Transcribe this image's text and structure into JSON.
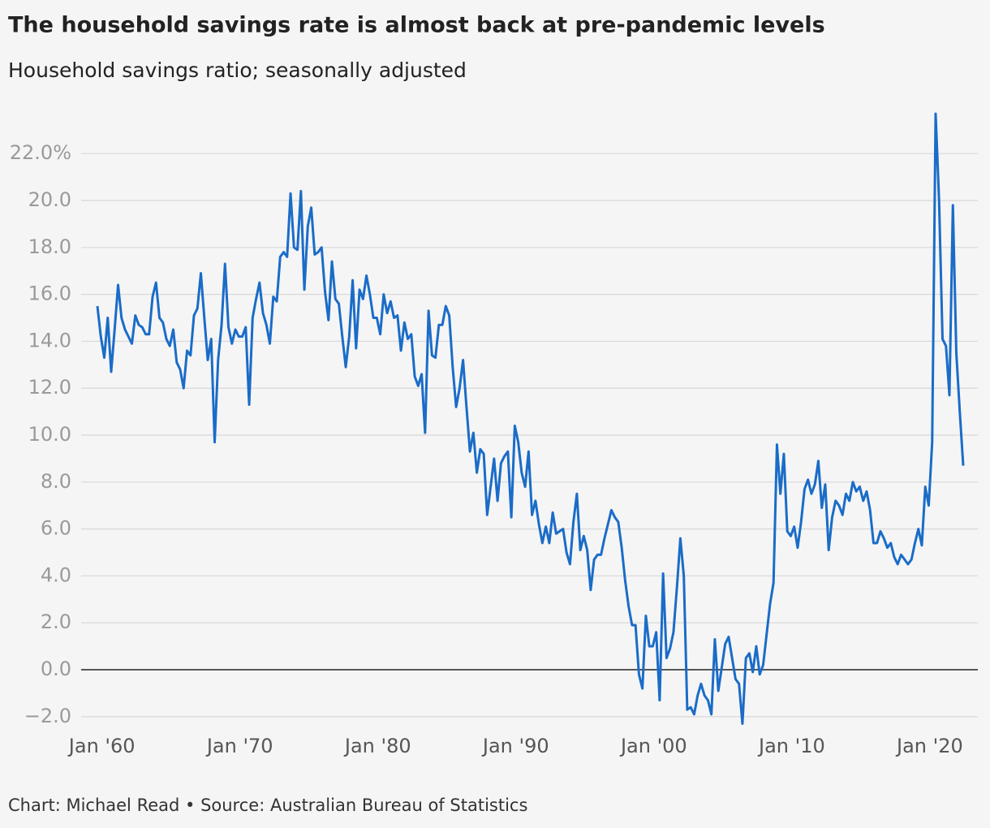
{
  "chart_data": {
    "type": "line",
    "title": "The household savings rate is almost back at pre-pandemic levels",
    "subtitle": "Household savings ratio; seasonally adjusted",
    "source": "Chart: Michael Read • Source: Australian Bureau of Statistics",
    "color": "#1a6cc8",
    "grid": true,
    "xlim": [
      "1959-09",
      "2022-06"
    ],
    "ylim": [
      -2.5,
      24
    ],
    "yticks": [
      {
        "value": -2,
        "label": "−2.0"
      },
      {
        "value": 0,
        "label": "0.0"
      },
      {
        "value": 2,
        "label": "2.0"
      },
      {
        "value": 4,
        "label": "4.0"
      },
      {
        "value": 6,
        "label": "6.0"
      },
      {
        "value": 8,
        "label": "8.0"
      },
      {
        "value": 10,
        "label": "10.0"
      },
      {
        "value": 12,
        "label": "12.0"
      },
      {
        "value": 14,
        "label": "14.0"
      },
      {
        "value": 16,
        "label": "16.0"
      },
      {
        "value": 18,
        "label": "18.0"
      },
      {
        "value": 20,
        "label": "20.0"
      },
      {
        "value": 22,
        "label": "22.0%"
      }
    ],
    "xticks": [
      {
        "value": "1960-01",
        "label": "Jan '60"
      },
      {
        "value": "1970-01",
        "label": "Jan '70"
      },
      {
        "value": "1980-01",
        "label": "Jan '80"
      },
      {
        "value": "1990-01",
        "label": "Jan '90"
      },
      {
        "value": "2000-01",
        "label": "Jan '00"
      },
      {
        "value": "2010-01",
        "label": "Jan '10"
      },
      {
        "value": "2020-01",
        "label": "Jan '20"
      }
    ],
    "x": [
      "1959-09",
      "1959-12",
      "1960-03",
      "1960-06",
      "1960-09",
      "1960-12",
      "1961-03",
      "1961-06",
      "1961-09",
      "1961-12",
      "1962-03",
      "1962-06",
      "1962-09",
      "1962-12",
      "1963-03",
      "1963-06",
      "1963-09",
      "1963-12",
      "1964-03",
      "1964-06",
      "1964-09",
      "1964-12",
      "1965-03",
      "1965-06",
      "1965-09",
      "1965-12",
      "1966-03",
      "1966-06",
      "1966-09",
      "1966-12",
      "1967-03",
      "1967-06",
      "1967-09",
      "1967-12",
      "1968-03",
      "1968-06",
      "1968-09",
      "1968-12",
      "1969-03",
      "1969-06",
      "1969-09",
      "1969-12",
      "1970-03",
      "1970-06",
      "1970-09",
      "1970-12",
      "1971-03",
      "1971-06",
      "1971-09",
      "1971-12",
      "1972-03",
      "1972-06",
      "1972-09",
      "1972-12",
      "1973-03",
      "1973-06",
      "1973-09",
      "1973-12",
      "1974-03",
      "1974-06",
      "1974-09",
      "1974-12",
      "1975-03",
      "1975-06",
      "1975-09",
      "1975-12",
      "1976-03",
      "1976-06",
      "1976-09",
      "1976-12",
      "1977-03",
      "1977-06",
      "1977-09",
      "1977-12",
      "1978-03",
      "1978-06",
      "1978-09",
      "1978-12",
      "1979-03",
      "1979-06",
      "1979-09",
      "1979-12",
      "1980-03",
      "1980-06",
      "1980-09",
      "1980-12",
      "1981-03",
      "1981-06",
      "1981-09",
      "1981-12",
      "1982-03",
      "1982-06",
      "1982-09",
      "1982-12",
      "1983-03",
      "1983-06",
      "1983-09",
      "1983-12",
      "1984-03",
      "1984-06",
      "1984-09",
      "1984-12",
      "1985-03",
      "1985-06",
      "1985-09",
      "1985-12",
      "1986-03",
      "1986-06",
      "1986-09",
      "1986-12",
      "1987-03",
      "1987-06",
      "1987-09",
      "1987-12",
      "1988-03",
      "1988-06",
      "1988-09",
      "1988-12",
      "1989-03",
      "1989-06",
      "1989-09",
      "1989-12",
      "1990-03",
      "1990-06",
      "1990-09",
      "1990-12",
      "1991-03",
      "1991-06",
      "1991-09",
      "1991-12",
      "1992-03",
      "1992-06",
      "1992-09",
      "1992-12",
      "1993-03",
      "1993-06",
      "1993-09",
      "1993-12",
      "1994-03",
      "1994-06",
      "1994-09",
      "1994-12",
      "1995-03",
      "1995-06",
      "1995-09",
      "1995-12",
      "1996-03",
      "1996-06",
      "1996-09",
      "1996-12",
      "1997-03",
      "1997-06",
      "1997-09",
      "1997-12",
      "1998-03",
      "1998-06",
      "1998-09",
      "1998-12",
      "1999-03",
      "1999-06",
      "1999-09",
      "1999-12",
      "2000-03",
      "2000-06",
      "2000-09",
      "2000-12",
      "2001-03",
      "2001-06",
      "2001-09",
      "2001-12",
      "2002-03",
      "2002-06",
      "2002-09",
      "2002-12",
      "2003-03",
      "2003-06",
      "2003-09",
      "2003-12",
      "2004-03",
      "2004-06",
      "2004-09",
      "2004-12",
      "2005-03",
      "2005-06",
      "2005-09",
      "2005-12",
      "2006-03",
      "2006-06",
      "2006-09",
      "2006-12",
      "2007-03",
      "2007-06",
      "2007-09",
      "2007-12",
      "2008-03",
      "2008-06",
      "2008-09",
      "2008-12",
      "2009-03",
      "2009-06",
      "2009-09",
      "2009-12",
      "2010-03",
      "2010-06",
      "2010-09",
      "2010-12",
      "2011-03",
      "2011-06",
      "2011-09",
      "2011-12",
      "2012-03",
      "2012-06",
      "2012-09",
      "2012-12",
      "2013-03",
      "2013-06",
      "2013-09",
      "2013-12",
      "2014-03",
      "2014-06",
      "2014-09",
      "2014-12",
      "2015-03",
      "2015-06",
      "2015-09",
      "2015-12",
      "2016-03",
      "2016-06",
      "2016-09",
      "2016-12",
      "2017-03",
      "2017-06",
      "2017-09",
      "2017-12",
      "2018-03",
      "2018-06",
      "2018-09",
      "2018-12",
      "2019-03",
      "2019-06",
      "2019-09",
      "2019-12",
      "2020-03",
      "2020-06",
      "2020-09",
      "2020-12",
      "2021-03",
      "2021-06",
      "2021-09",
      "2021-12",
      "2022-03",
      "2022-06"
    ],
    "values": [
      15.5,
      14.2,
      13.3,
      15.0,
      12.7,
      14.5,
      16.4,
      15.0,
      14.5,
      14.2,
      13.9,
      15.1,
      14.7,
      14.6,
      14.3,
      14.3,
      15.9,
      16.5,
      15.0,
      14.8,
      14.1,
      13.8,
      14.5,
      13.1,
      12.8,
      12.0,
      13.6,
      13.4,
      15.1,
      15.4,
      16.9,
      15.0,
      13.2,
      14.1,
      9.7,
      13.2,
      14.7,
      17.3,
      14.6,
      13.9,
      14.5,
      14.2,
      14.2,
      14.6,
      11.3,
      15.0,
      15.8,
      16.5,
      15.2,
      14.7,
      13.9,
      15.9,
      15.7,
      17.6,
      17.8,
      17.6,
      20.3,
      18.0,
      17.9,
      20.4,
      16.2,
      18.9,
      19.7,
      17.7,
      17.8,
      18.0,
      16.1,
      14.9,
      17.4,
      15.8,
      15.6,
      14.2,
      12.9,
      14.2,
      16.6,
      13.7,
      16.2,
      15.8,
      16.8,
      16.0,
      15.0,
      15.0,
      14.3,
      16.0,
      15.2,
      15.7,
      15.0,
      15.1,
      13.6,
      14.8,
      14.1,
      14.3,
      12.5,
      12.1,
      12.6,
      10.1,
      15.3,
      13.4,
      13.3,
      14.7,
      14.7,
      15.5,
      15.1,
      12.9,
      11.2,
      12.0,
      13.2,
      11.2,
      9.3,
      10.1,
      8.4,
      9.4,
      9.2,
      6.6,
      7.8,
      9.0,
      7.2,
      8.8,
      9.1,
      9.3,
      6.5,
      10.4,
      9.7,
      8.4,
      7.8,
      9.3,
      6.6,
      7.2,
      6.2,
      5.4,
      6.1,
      5.4,
      6.7,
      5.8,
      5.9,
      6.0,
      5.0,
      4.5,
      6.3,
      7.5,
      5.1,
      5.7,
      5.1,
      3.4,
      4.7,
      4.9,
      4.9,
      5.6,
      6.2,
      6.8,
      6.5,
      6.3,
      5.2,
      3.8,
      2.7,
      1.9,
      1.9,
      -0.2,
      -0.8,
      2.3,
      1.0,
      1.0,
      1.6,
      -1.3,
      4.1,
      0.5,
      0.9,
      1.6,
      3.5,
      5.6,
      4.0,
      -1.7,
      -1.6,
      -1.9,
      -1.1,
      -0.6,
      -1.1,
      -1.3,
      -1.9,
      1.3,
      -0.9,
      0.1,
      1.1,
      1.4,
      0.5,
      -0.4,
      -0.6,
      -2.3,
      0.5,
      0.7,
      -0.1,
      1.0,
      -0.2,
      0.2,
      1.5,
      2.8,
      3.7,
      9.6,
      7.5,
      9.2,
      5.9,
      5.7,
      6.1,
      5.2,
      6.3,
      7.7,
      8.1,
      7.5,
      7.9,
      8.9,
      6.9,
      7.9,
      5.1,
      6.5,
      7.2,
      7.0,
      6.6,
      7.5,
      7.2,
      8.0,
      7.6,
      7.8,
      7.2,
      7.6,
      6.8,
      5.4,
      5.4,
      5.9,
      5.6,
      5.2,
      5.4,
      4.8,
      4.5,
      4.9,
      4.7,
      4.5,
      4.7,
      5.4,
      6.0,
      5.3,
      7.8,
      7.0,
      9.7,
      23.7,
      20.0,
      14.1,
      13.8,
      11.7,
      19.8,
      13.5,
      11.0,
      8.7
    ]
  }
}
